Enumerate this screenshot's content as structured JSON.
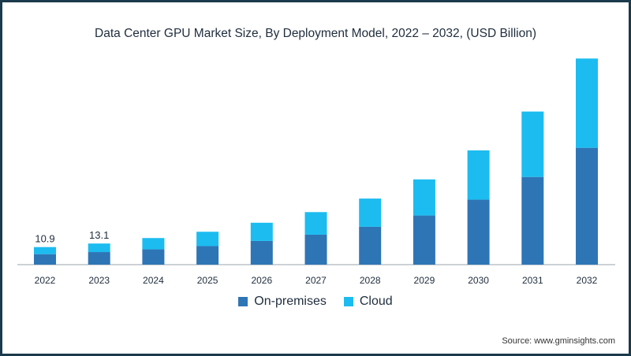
{
  "chart_data": {
    "type": "bar",
    "stacked": true,
    "title": "Data Center GPU Market Size, By Deployment Model, 2022 – 2032, (USD Billion)",
    "categories": [
      "2022",
      "2023",
      "2024",
      "2025",
      "2026",
      "2027",
      "2028",
      "2029",
      "2030",
      "2031",
      "2032"
    ],
    "series": [
      {
        "name": "On-premises",
        "color": "#2e75b6",
        "values": [
          6.5,
          7.8,
          9.5,
          11.5,
          14.7,
          18.6,
          23.5,
          30.5,
          40.3,
          54.4,
          72.5
        ]
      },
      {
        "name": "Cloud",
        "color": "#1cbcf0",
        "values": [
          4.4,
          5.3,
          7.0,
          8.9,
          11.3,
          14.0,
          17.5,
          22.4,
          30.6,
          40.6,
          55.4
        ]
      }
    ],
    "data_labels": [
      "10.9",
      "13.1"
    ],
    "ylim": [
      0,
      130
    ],
    "xlabel": "",
    "ylabel": "",
    "legend_position": "bottom"
  },
  "source": "Source: www.gminsights.com"
}
